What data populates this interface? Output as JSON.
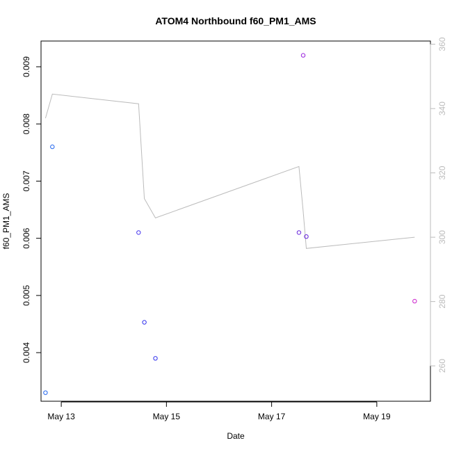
{
  "chart_data": {
    "type": "scatter",
    "title": "ATOM4 Northbound f60_PM1_AMS",
    "xlabel": "Date",
    "ylabel": "f60_PM1_AMS",
    "xlim": [
      12.615,
      20.02
    ],
    "ylim": [
      0.00315,
      0.00945
    ],
    "x_ticks": [
      {
        "value": 13,
        "label": "May 13"
      },
      {
        "value": 15,
        "label": "May 15"
      },
      {
        "value": 17,
        "label": "May 17"
      },
      {
        "value": 19,
        "label": "May 19"
      }
    ],
    "y_ticks": [
      {
        "value": 0.004,
        "label": "0.004"
      },
      {
        "value": 0.005,
        "label": "0.005"
      },
      {
        "value": 0.006,
        "label": "0.006"
      },
      {
        "value": 0.007,
        "label": "0.007"
      },
      {
        "value": 0.008,
        "label": "0.008"
      },
      {
        "value": 0.009,
        "label": "0.009"
      }
    ],
    "series": [
      {
        "name": "f60_PM1_AMS",
        "axis": "left",
        "style": "points",
        "points": [
          {
            "x": 12.7,
            "y": 0.0033,
            "color": "#2266ee"
          },
          {
            "x": 12.83,
            "y": 0.0076,
            "color": "#2266ee"
          },
          {
            "x": 14.47,
            "y": 0.0061,
            "color": "#4433ee"
          },
          {
            "x": 14.58,
            "y": 0.00453,
            "color": "#3333ee"
          },
          {
            "x": 14.79,
            "y": 0.0039,
            "color": "#3333ee"
          },
          {
            "x": 17.52,
            "y": 0.0061,
            "color": "#6622dd"
          },
          {
            "x": 17.6,
            "y": 0.0092,
            "color": "#9922dd"
          },
          {
            "x": 17.66,
            "y": 0.00603,
            "color": "#6622dd"
          },
          {
            "x": 19.72,
            "y": 0.0049,
            "color": "#cc22cc"
          }
        ]
      },
      {
        "name": "right-axis line",
        "axis": "right",
        "style": "line",
        "color": "#bbbbbb",
        "x": [
          12.7,
          12.83,
          14.47,
          14.58,
          14.79,
          17.52,
          17.6,
          17.66,
          19.72
        ],
        "y": [
          337,
          344.5,
          341.5,
          312,
          306,
          322,
          308,
          296.5,
          300
        ]
      }
    ],
    "right_axis": {
      "ylim": [
        249,
        361
      ],
      "ticks": [
        {
          "value": 260,
          "label": "260"
        },
        {
          "value": 280,
          "label": "280"
        },
        {
          "value": 300,
          "label": "300"
        },
        {
          "value": 320,
          "label": "320"
        },
        {
          "value": 340,
          "label": "340"
        },
        {
          "value": 360,
          "label": "360"
        }
      ],
      "color": "#bbbbbb"
    },
    "grid": false,
    "legend": "none"
  }
}
